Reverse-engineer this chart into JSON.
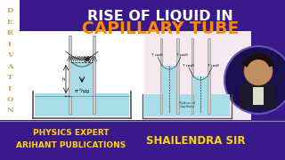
{
  "bg_color": "#3a1a8a",
  "title_line1": "RISE OF LIQUID IN",
  "title_line2": "CAPILLARY TUBE",
  "title_color1": "#ffffff",
  "title_color2": "#ff8c00",
  "deriv_letters": [
    "D",
    "E",
    "R",
    "I",
    "V",
    "A",
    "T",
    "I",
    "O",
    "N"
  ],
  "deriv_color": "#c8a84b",
  "bottom_left1": "PHYSICS EXPERT",
  "bottom_left2": "ARIHANT PUBLICATIONS",
  "bottom_right": "SHAILENDRA SIR",
  "bottom_color": "#ffd700",
  "diagram_bg1": "#f0f0f0",
  "diagram_bg2": "#f5e8ee",
  "liquid_color": "#a8dde8",
  "tube_color": "#555555",
  "white": "#ffffff"
}
